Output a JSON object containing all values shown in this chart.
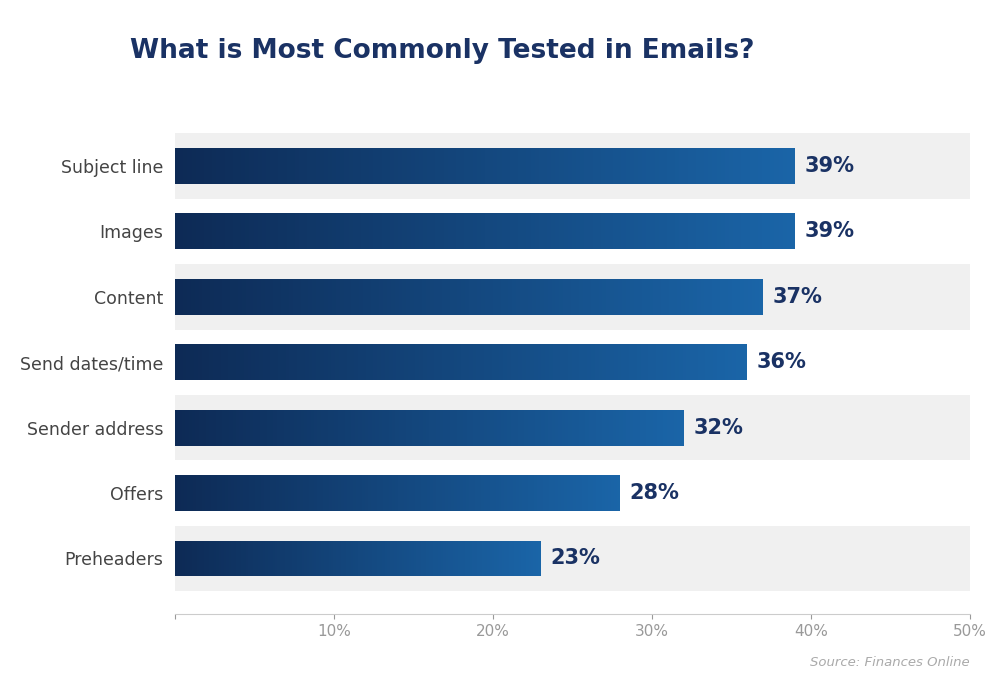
{
  "title": "What is Most Commonly Tested in Emails?",
  "categories": [
    "Subject line",
    "Images",
    "Content",
    "Send dates/time",
    "Sender address",
    "Offers",
    "Preheaders"
  ],
  "values": [
    39,
    39,
    37,
    36,
    32,
    28,
    23
  ],
  "bar_color_dark": "#0d2f5a",
  "bar_color_light": "#1e6aad",
  "background_color": "#ffffff",
  "row_bg_shaded": "#f0f0f0",
  "row_bg_white": "#ffffff",
  "label_color": "#1a3264",
  "xlim": [
    0,
    50
  ],
  "xticks": [
    0,
    10,
    20,
    30,
    40,
    50
  ],
  "source_text": "Source: Finances Online",
  "title_color": "#1a3264",
  "title_fontsize": 19,
  "bar_label_fontsize": 15,
  "category_fontsize": 12.5,
  "tick_fontsize": 11,
  "bar_height": 0.55
}
